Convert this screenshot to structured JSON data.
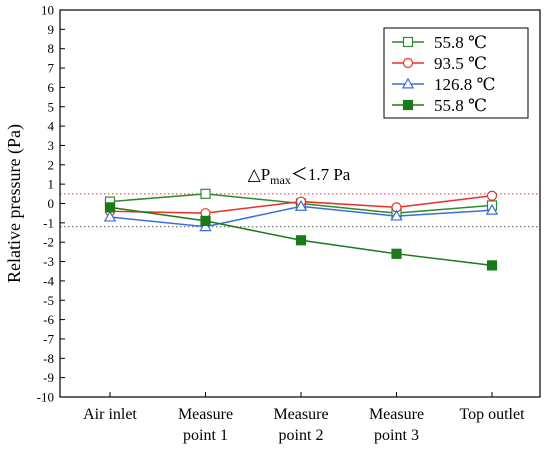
{
  "chart_data": {
    "type": "line",
    "ylabel": "Relative pressure (Pa)",
    "xlabel": "",
    "ylim": [
      -10,
      10
    ],
    "yticks": [
      -10,
      -9,
      -8,
      -7,
      -6,
      -5,
      -4,
      -3,
      -2,
      -1,
      0,
      1,
      2,
      3,
      4,
      5,
      6,
      7,
      8,
      9,
      10
    ],
    "categories": [
      [
        "Air inlet"
      ],
      [
        "Measure",
        "point 1"
      ],
      [
        "Measure",
        "point 2"
      ],
      [
        "Measure",
        "point 3"
      ],
      [
        "Top outlet"
      ]
    ],
    "series": [
      {
        "name": "55.8 ℃",
        "color": "#2e8b2e",
        "marker": "square-open",
        "values": [
          0.1,
          0.5,
          0.0,
          -0.5,
          -0.1
        ]
      },
      {
        "name": "93.5 ℃",
        "color": "#e8302a",
        "marker": "circle-open",
        "values": [
          -0.4,
          -0.5,
          0.1,
          -0.2,
          0.4
        ]
      },
      {
        "name": "126.8 ℃",
        "color": "#3a6fd8",
        "marker": "triangle-open",
        "values": [
          -0.7,
          -1.2,
          -0.15,
          -0.65,
          -0.35
        ]
      },
      {
        "name": "55.8 ℃",
        "color": "#1a7a1a",
        "marker": "square-filled",
        "values": [
          -0.2,
          -0.9,
          -1.9,
          -2.6,
          -3.2
        ]
      }
    ],
    "reference_lines": [
      {
        "y": 0.5,
        "color": "#e8302a",
        "style": "dotted"
      },
      {
        "y": -1.2,
        "color": "#555555",
        "style": "dotted"
      }
    ],
    "annotation": {
      "prefix": "△P",
      "subscript": "max",
      "suffix": "＜1.7 Pa",
      "x_index": 2,
      "y": 0.9
    },
    "legend": {
      "position": "top-right"
    },
    "grid": false
  }
}
